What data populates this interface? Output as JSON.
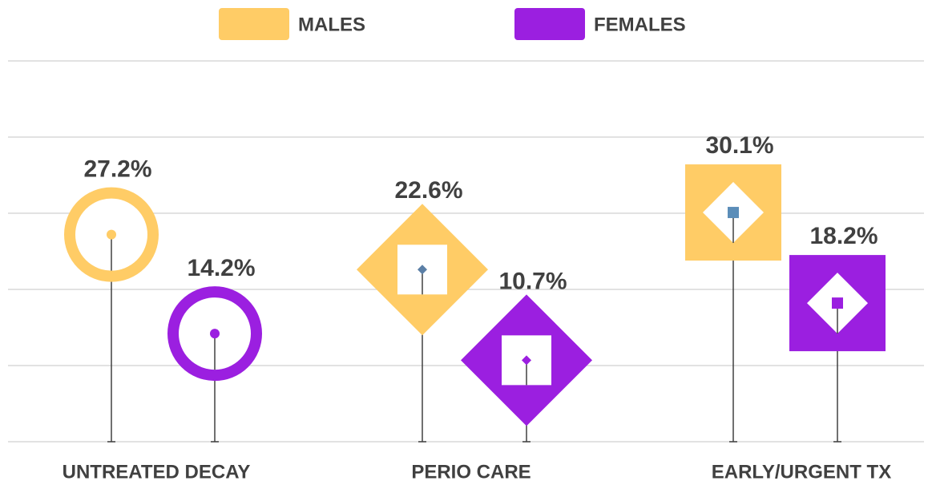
{
  "chart_data": {
    "type": "lollipop",
    "categories": [
      "UNTREATED DECAY",
      "PERIO CARE",
      "EARLY/URGENT TX"
    ],
    "markers": [
      "circle",
      "diamond",
      "square"
    ],
    "series": [
      {
        "name": "MALES",
        "color": "#FFCC66",
        "marker_colors": [
          "#FFCC66",
          "#5B7FA6",
          "#5B8DB8"
        ],
        "values": [
          27.2,
          22.6,
          30.1
        ],
        "value_labels": [
          "27.2%",
          "22.6%",
          "30.1%"
        ]
      },
      {
        "name": "FEMALES",
        "color": "#9B1FE0",
        "marker_colors": [
          "#9B1FE0",
          "#9B1FE0",
          "#9B1FE0"
        ],
        "values": [
          14.2,
          10.7,
          18.2
        ],
        "value_labels": [
          "14.2%",
          "10.7%",
          "18.2%"
        ]
      }
    ],
    "ylim": [
      0,
      50
    ],
    "yticks": [
      0,
      10,
      20,
      30,
      40,
      50
    ],
    "grid": true
  }
}
